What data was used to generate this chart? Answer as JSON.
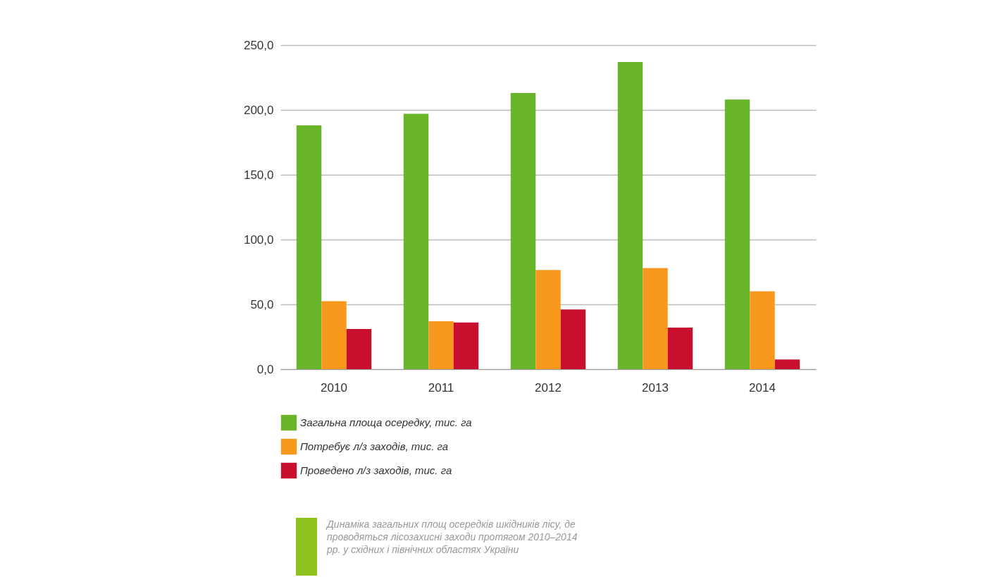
{
  "chart_data": {
    "type": "bar",
    "categories": [
      "2010",
      "2011",
      "2012",
      "2013",
      "2014"
    ],
    "series": [
      {
        "name": "Загальна площа осередку, тис. га",
        "color": "#6ab42a",
        "values": [
          188,
          197,
          213,
          237,
          208
        ]
      },
      {
        "name": "Потребує л/з заходів, тис. га",
        "color": "#f7981d",
        "values": [
          52.5,
          37,
          76.5,
          78,
          60
        ]
      },
      {
        "name": "Проведено л/з заходів, тис. га",
        "color": "#c8102e",
        "values": [
          31,
          36,
          46,
          32,
          7.5
        ]
      }
    ],
    "ylim": [
      0,
      250
    ],
    "yticks": [
      {
        "value": 0,
        "label": "0,0"
      },
      {
        "value": 50,
        "label": "50,0"
      },
      {
        "value": 100,
        "label": "100,0"
      },
      {
        "value": 150,
        "label": "150,0"
      },
      {
        "value": 200,
        "label": "200,0"
      },
      {
        "value": 250,
        "label": "250,0"
      }
    ],
    "grid": "y",
    "legend": "bottom",
    "annotations": [
      "Динаміка загальних площ осередків шкідників лісу, де проводяться лісозахисні заходи протягом 2010–2014 рр. у східних і північних областях України"
    ]
  }
}
